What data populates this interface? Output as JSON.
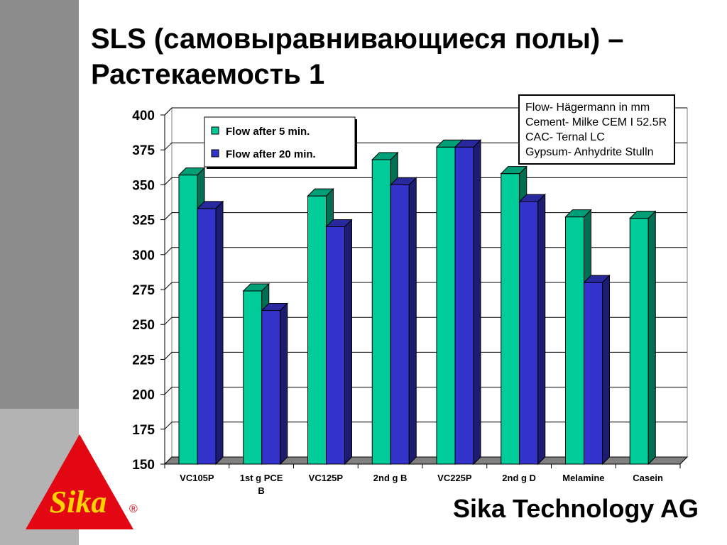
{
  "slide": {
    "title_line1": "SLS (самовыравнивающиеся полы) –",
    "title_line2": "Растекаемость 1",
    "footer": "Sika Technology AG",
    "logo_text": "Sika",
    "logo_mark": "®",
    "notes": [
      "Flow- Hägermann in mm",
      "Cement- Milke CEM I 52.5R",
      "CAC- Ternal LC",
      "Gypsum- Anhydrite Stulln"
    ]
  },
  "colors": {
    "series_5min": "#00cc99",
    "series_20min": "#3333cc",
    "logo_red": "#e30613",
    "logo_yellow": "#ffd200"
  },
  "chart_data": {
    "type": "bar",
    "categories": [
      "VC105P",
      "1st g PCE B",
      "VC125P",
      "2nd g B",
      "VC225P",
      "2nd g D",
      "Melamine",
      "Casein"
    ],
    "category_labels": [
      [
        "VC105P"
      ],
      [
        "1st g PCE",
        "B"
      ],
      [
        "VC125P"
      ],
      [
        "2nd g B"
      ],
      [
        "VC225P"
      ],
      [
        "2nd g D"
      ],
      [
        "Melamine"
      ],
      [
        "Casein"
      ]
    ],
    "series": [
      {
        "name": "Flow after 5 min.",
        "values": [
          357,
          274,
          342,
          368,
          377,
          358,
          327,
          326
        ]
      },
      {
        "name": "Flow after 20 min.",
        "values": [
          333,
          260,
          320,
          350,
          377,
          338,
          280,
          null
        ]
      }
    ],
    "ylim": [
      150,
      400
    ],
    "yticks": [
      150,
      175,
      200,
      225,
      250,
      275,
      300,
      325,
      350,
      375,
      400
    ],
    "xlabel": "",
    "ylabel": "",
    "grid": true,
    "legend_position": "top-left",
    "three_d": true
  }
}
